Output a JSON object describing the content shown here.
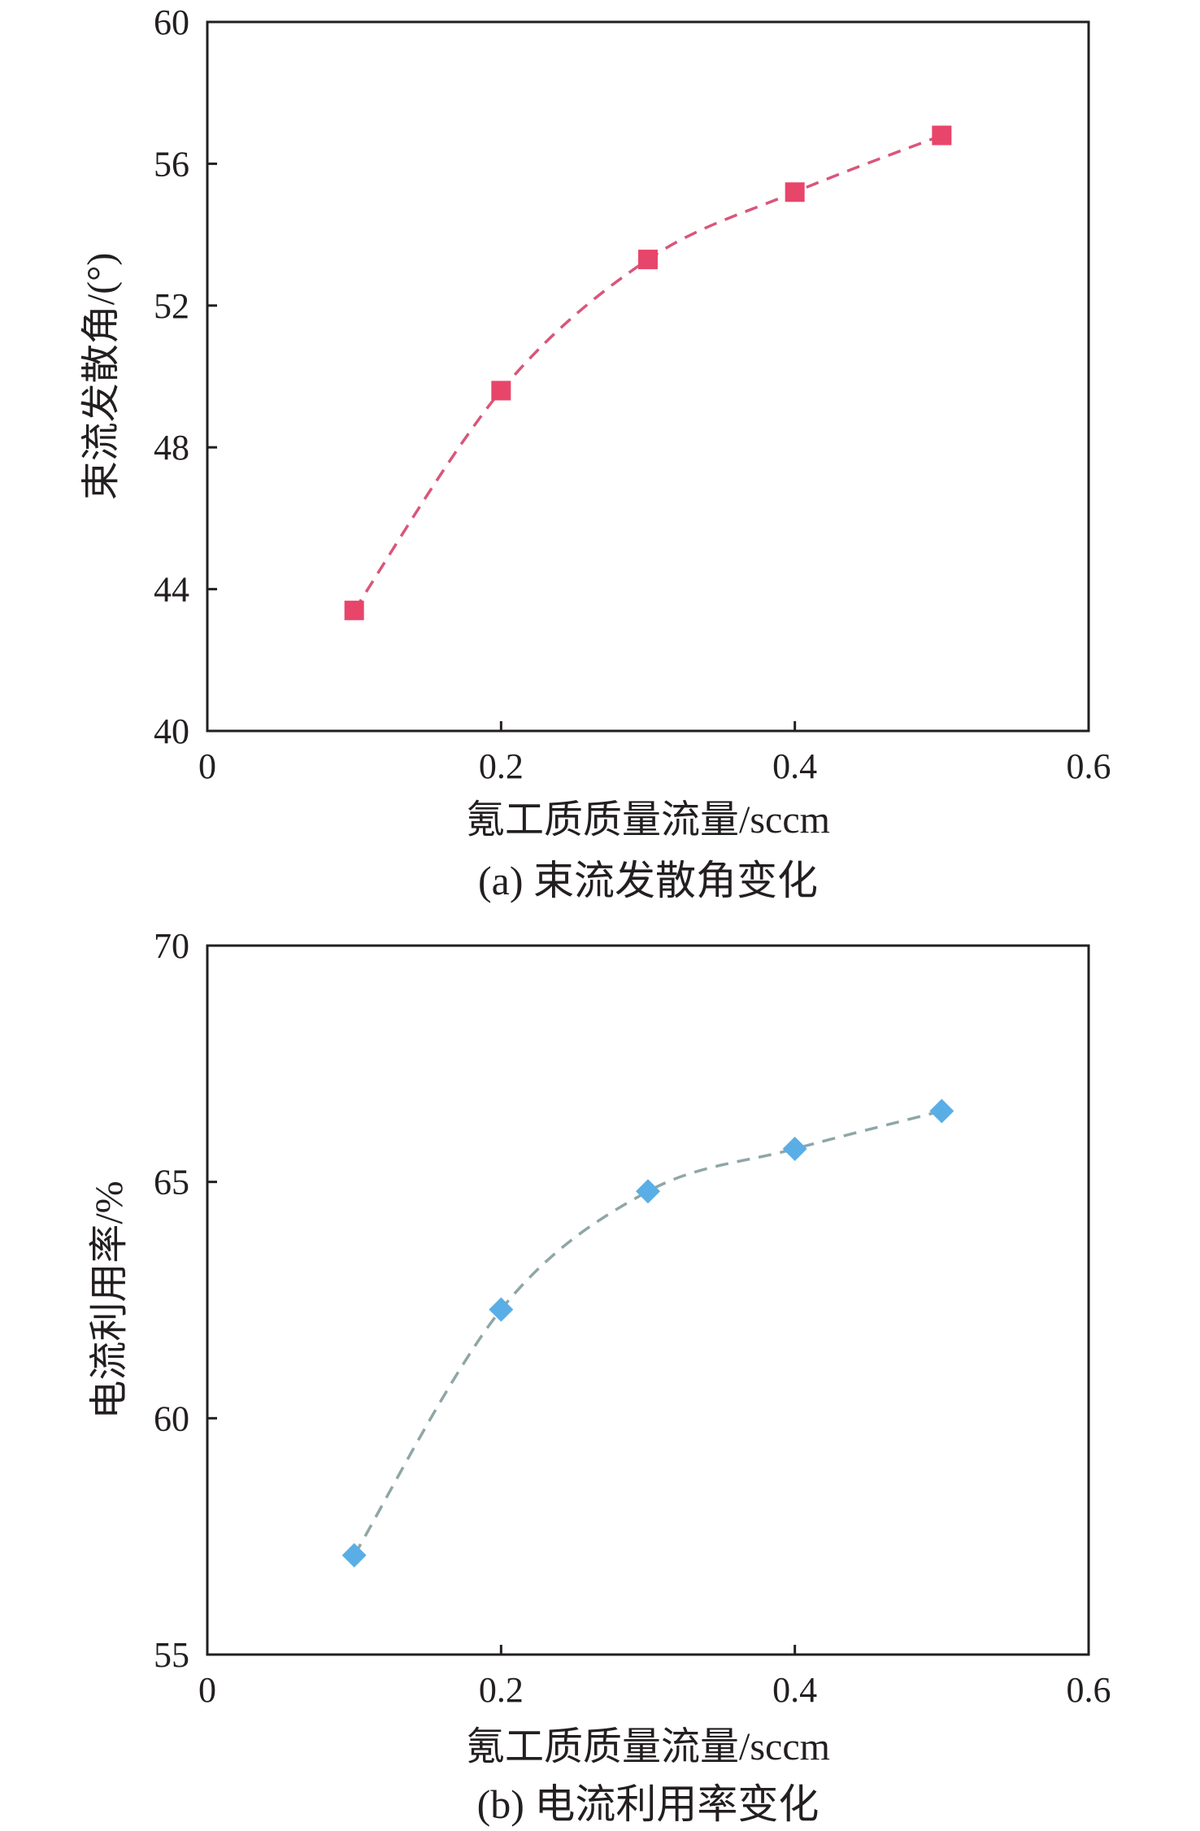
{
  "chart_data": [
    {
      "type": "scatter",
      "caption": "(a) 束流发散角变化",
      "xlabel": "氪工质质量流量/sccm",
      "ylabel": "束流发散角/(°)",
      "xlim": [
        0,
        0.6
      ],
      "ylim": [
        40,
        60
      ],
      "xticks": [
        0,
        0.2,
        0.4,
        0.6
      ],
      "xtick_labels": [
        "0",
        "0.2",
        "0.4",
        "0.6"
      ],
      "yticks": [
        40,
        44,
        48,
        52,
        56,
        60
      ],
      "ytick_labels": [
        "40",
        "44",
        "48",
        "52",
        "56",
        "60"
      ],
      "grid": false,
      "series": [
        {
          "x": [
            0.1,
            0.2,
            0.3,
            0.4,
            0.5
          ],
          "y": [
            43.4,
            49.6,
            53.3,
            55.2,
            56.8
          ],
          "marker": "square",
          "marker_color": "#e8456b",
          "line_style": "dashed",
          "line_color": "#d9567a"
        }
      ]
    },
    {
      "type": "scatter",
      "caption": "(b) 电流利用率变化",
      "xlabel": "氪工质质量流量/sccm",
      "ylabel": "电流利用率/%",
      "xlim": [
        0,
        0.6
      ],
      "ylim": [
        55,
        70
      ],
      "xticks": [
        0,
        0.2,
        0.4,
        0.6
      ],
      "xtick_labels": [
        "0",
        "0.2",
        "0.4",
        "0.6"
      ],
      "yticks": [
        55,
        60,
        65,
        70
      ],
      "ytick_labels": [
        "55",
        "60",
        "65",
        "70"
      ],
      "grid": false,
      "series": [
        {
          "x": [
            0.1,
            0.2,
            0.3,
            0.4,
            0.5
          ],
          "y": [
            57.1,
            62.3,
            64.8,
            65.7,
            66.5
          ],
          "marker": "diamond",
          "marker_color": "#5aaee6",
          "line_style": "dashed",
          "line_color": "#8fa6a6"
        }
      ]
    }
  ]
}
